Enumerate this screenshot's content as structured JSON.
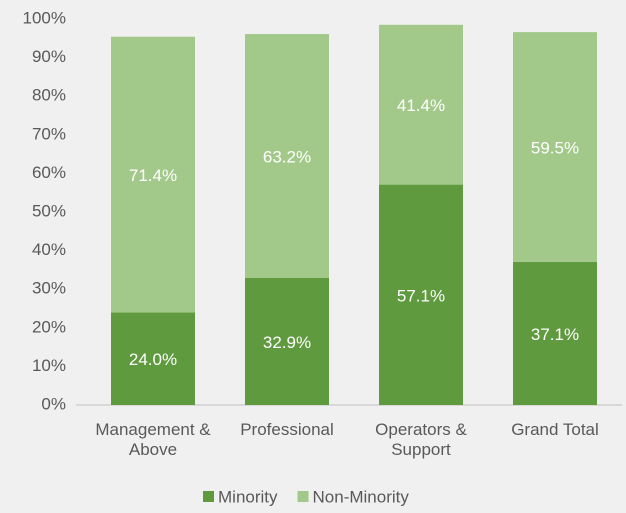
{
  "chart_data": {
    "type": "stacked_bar",
    "categories": [
      "Management & Above",
      "Professional",
      "Operators & Support",
      "Grand Total"
    ],
    "series": [
      {
        "name": "Minority",
        "color": "#5f9a3e",
        "values": [
          24.0,
          32.9,
          57.1,
          37.1
        ],
        "value_labels": [
          "24.0%",
          "32.9%",
          "57.1%",
          "37.1%"
        ]
      },
      {
        "name": "Non-Minority",
        "color": "#a3c98a",
        "values": [
          71.4,
          63.2,
          41.4,
          59.5
        ],
        "value_labels": [
          "71.4%",
          "63.2%",
          "41.4%",
          "59.5%"
        ]
      }
    ],
    "ylim": [
      0,
      100
    ],
    "yticks": [
      {
        "value": 0,
        "label": "0%"
      },
      {
        "value": 10,
        "label": "10%"
      },
      {
        "value": 20,
        "label": "20%"
      },
      {
        "value": 30,
        "label": "30%"
      },
      {
        "value": 40,
        "label": "40%"
      },
      {
        "value": 50,
        "label": "50%"
      },
      {
        "value": 60,
        "label": "60%"
      },
      {
        "value": 70,
        "label": "70%"
      },
      {
        "value": 80,
        "label": "80%"
      },
      {
        "value": 90,
        "label": "90%"
      },
      {
        "value": 100,
        "label": "100%"
      }
    ],
    "grid": false,
    "legend": "bottom"
  }
}
